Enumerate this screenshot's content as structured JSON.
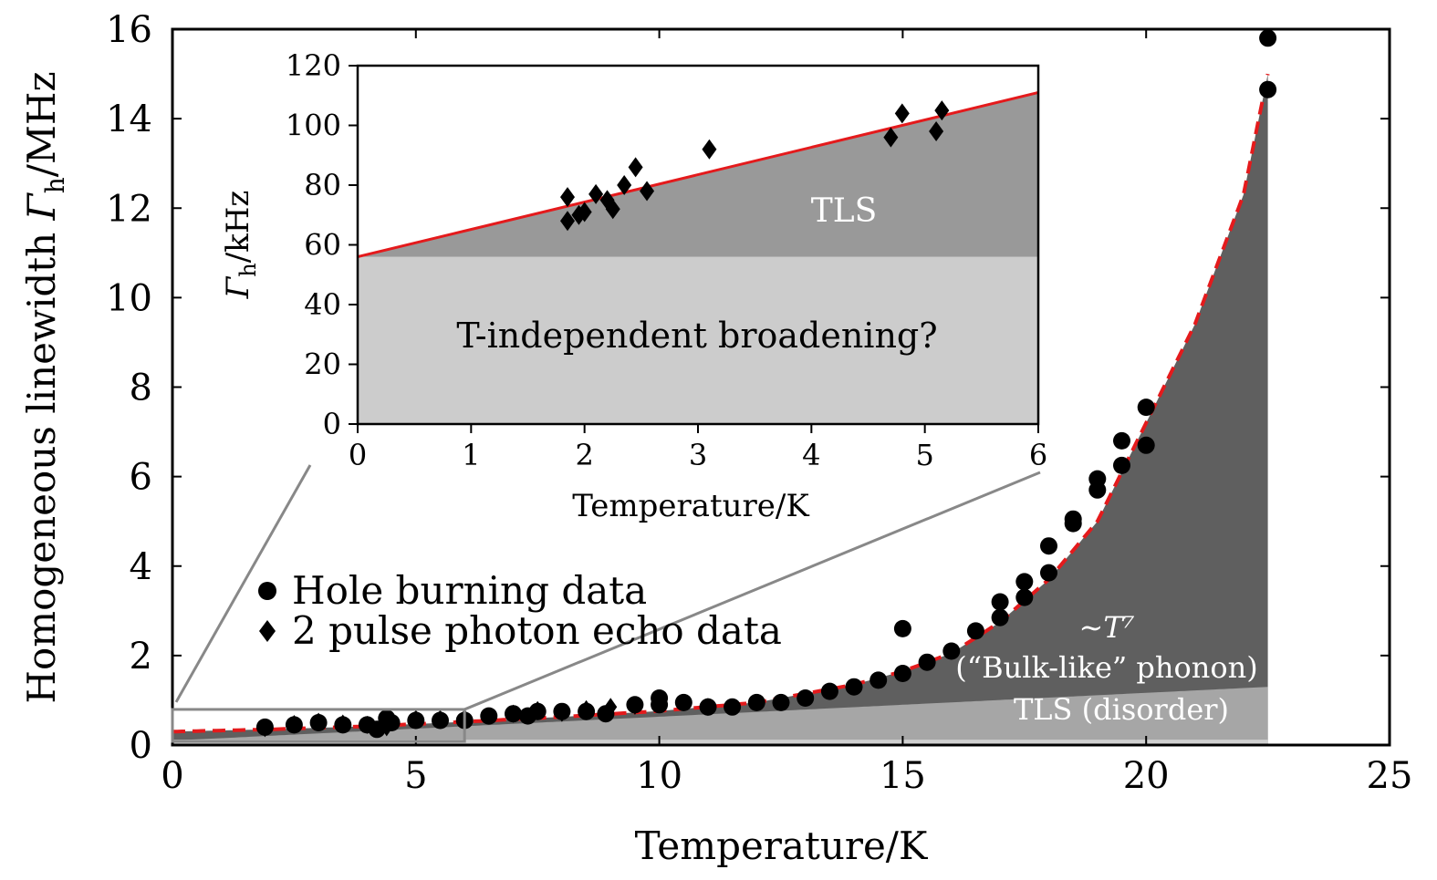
{
  "chart_data": [
    {
      "type": "scatter",
      "title": "",
      "xlabel": "Temperature/K",
      "ylabel": "Homogeneous linewidth Γh/MHz",
      "ylabel_parts": {
        "main": "Homogeneous linewidth ",
        "sym": "Γ",
        "sub": "h",
        "unit": "/MHz"
      },
      "xlim": [
        0,
        25
      ],
      "ylim": [
        0,
        16
      ],
      "xticks": [
        "0",
        "5",
        "10",
        "15",
        "20",
        "25"
      ],
      "yticks": [
        "0",
        "2",
        "4",
        "6",
        "8",
        "10",
        "12",
        "14",
        "16"
      ],
      "legend_position": "middle-left",
      "legend": [
        "Hole burning data",
        "2 pulse photon echo data"
      ],
      "series": [
        {
          "name": "Hole burning data",
          "marker": "circle",
          "x": [
            1.9,
            2.5,
            3.0,
            3.5,
            4.0,
            4.2,
            4.4,
            4.5,
            5.0,
            5.5,
            6.0,
            6.5,
            7.0,
            7.3,
            7.5,
            8.0,
            8.5,
            8.9,
            9.5,
            10.0,
            10.0,
            10.5,
            11.0,
            11.5,
            12.0,
            12.5,
            13.0,
            13.5,
            14.0,
            14.5,
            15.0,
            15.0,
            15.5,
            16.0,
            16.5,
            17.0,
            17.0,
            17.5,
            17.5,
            18.0,
            18.0,
            18.5,
            18.5,
            19.0,
            19.0,
            19.5,
            19.5,
            20.0,
            20.0,
            22.5,
            22.5
          ],
          "y": [
            0.4,
            0.45,
            0.5,
            0.45,
            0.45,
            0.35,
            0.6,
            0.5,
            0.55,
            0.55,
            0.55,
            0.65,
            0.7,
            0.65,
            0.75,
            0.75,
            0.75,
            0.7,
            0.9,
            0.9,
            1.05,
            0.95,
            0.85,
            0.85,
            0.95,
            0.95,
            1.05,
            1.2,
            1.3,
            1.45,
            1.6,
            2.6,
            1.85,
            2.1,
            2.55,
            2.85,
            3.2,
            3.3,
            3.65,
            3.85,
            4.45,
            4.95,
            5.05,
            5.7,
            5.95,
            6.25,
            6.8,
            6.7,
            7.55,
            14.65,
            15.8
          ]
        },
        {
          "name": "2 pulse photon echo data",
          "marker": "diamond",
          "x": [
            1.9,
            2.5,
            3.0,
            3.5,
            4.0,
            4.4,
            4.5,
            5.0,
            5.5,
            6.0,
            7.0,
            7.5,
            8.0,
            8.5,
            9.0,
            9.5,
            10.0,
            11.0
          ],
          "y": [
            0.38,
            0.47,
            0.52,
            0.48,
            0.45,
            0.4,
            0.55,
            0.58,
            0.58,
            0.6,
            0.7,
            0.78,
            0.72,
            0.8,
            0.85,
            0.88,
            0.95,
            0.85
          ]
        },
        {
          "name": "fit",
          "style": "dashed red",
          "x": [
            0,
            2,
            4,
            6,
            8,
            10,
            12,
            14,
            15,
            16,
            17,
            18,
            19,
            20,
            21,
            22,
            22.5
          ],
          "y": [
            0.3,
            0.35,
            0.42,
            0.52,
            0.63,
            0.76,
            0.95,
            1.35,
            1.65,
            2.05,
            2.75,
            3.7,
            5.0,
            7.2,
            9.4,
            12.3,
            15.0
          ]
        }
      ],
      "regions": [
        {
          "label": "TLS (disorder)",
          "color": "#a6a6a6"
        },
        {
          "label": "∼T⁷",
          "label2": "(“Bulk-like” phonon)",
          "color": "#5f5f5f"
        }
      ],
      "zoom_box": {
        "x": [
          0,
          6
        ],
        "y": [
          0,
          1
        ]
      }
    },
    {
      "type": "scatter",
      "title": "",
      "xlabel": "Temperature/K",
      "ylabel": "Γh/kHz",
      "ylabel_parts": {
        "sym": "Γ",
        "sub": "h",
        "unit": "/kHz"
      },
      "xlim": [
        0,
        6
      ],
      "ylim": [
        0,
        120
      ],
      "xticks": [
        "0",
        "1",
        "2",
        "3",
        "4",
        "5",
        "6"
      ],
      "yticks": [
        "0",
        "20",
        "40",
        "60",
        "80",
        "100",
        "120"
      ],
      "series": [
        {
          "name": "2 pulse photon echo data",
          "marker": "diamond",
          "x": [
            1.85,
            1.85,
            1.95,
            2.0,
            2.1,
            2.2,
            2.25,
            2.35,
            2.45,
            2.55,
            3.1,
            4.7,
            4.8,
            5.1,
            5.15
          ],
          "y": [
            76,
            68,
            70,
            71,
            77,
            75,
            72,
            80,
            86,
            78,
            92,
            96,
            104,
            98,
            105
          ]
        },
        {
          "name": "fit",
          "style": "solid red",
          "x": [
            0,
            6
          ],
          "y": [
            56,
            111
          ]
        }
      ],
      "regions": [
        {
          "label": "T-independent broadening?",
          "y": [
            0,
            56
          ],
          "color": "#cccccc"
        },
        {
          "label": "TLS",
          "color": "#999999"
        }
      ]
    }
  ]
}
